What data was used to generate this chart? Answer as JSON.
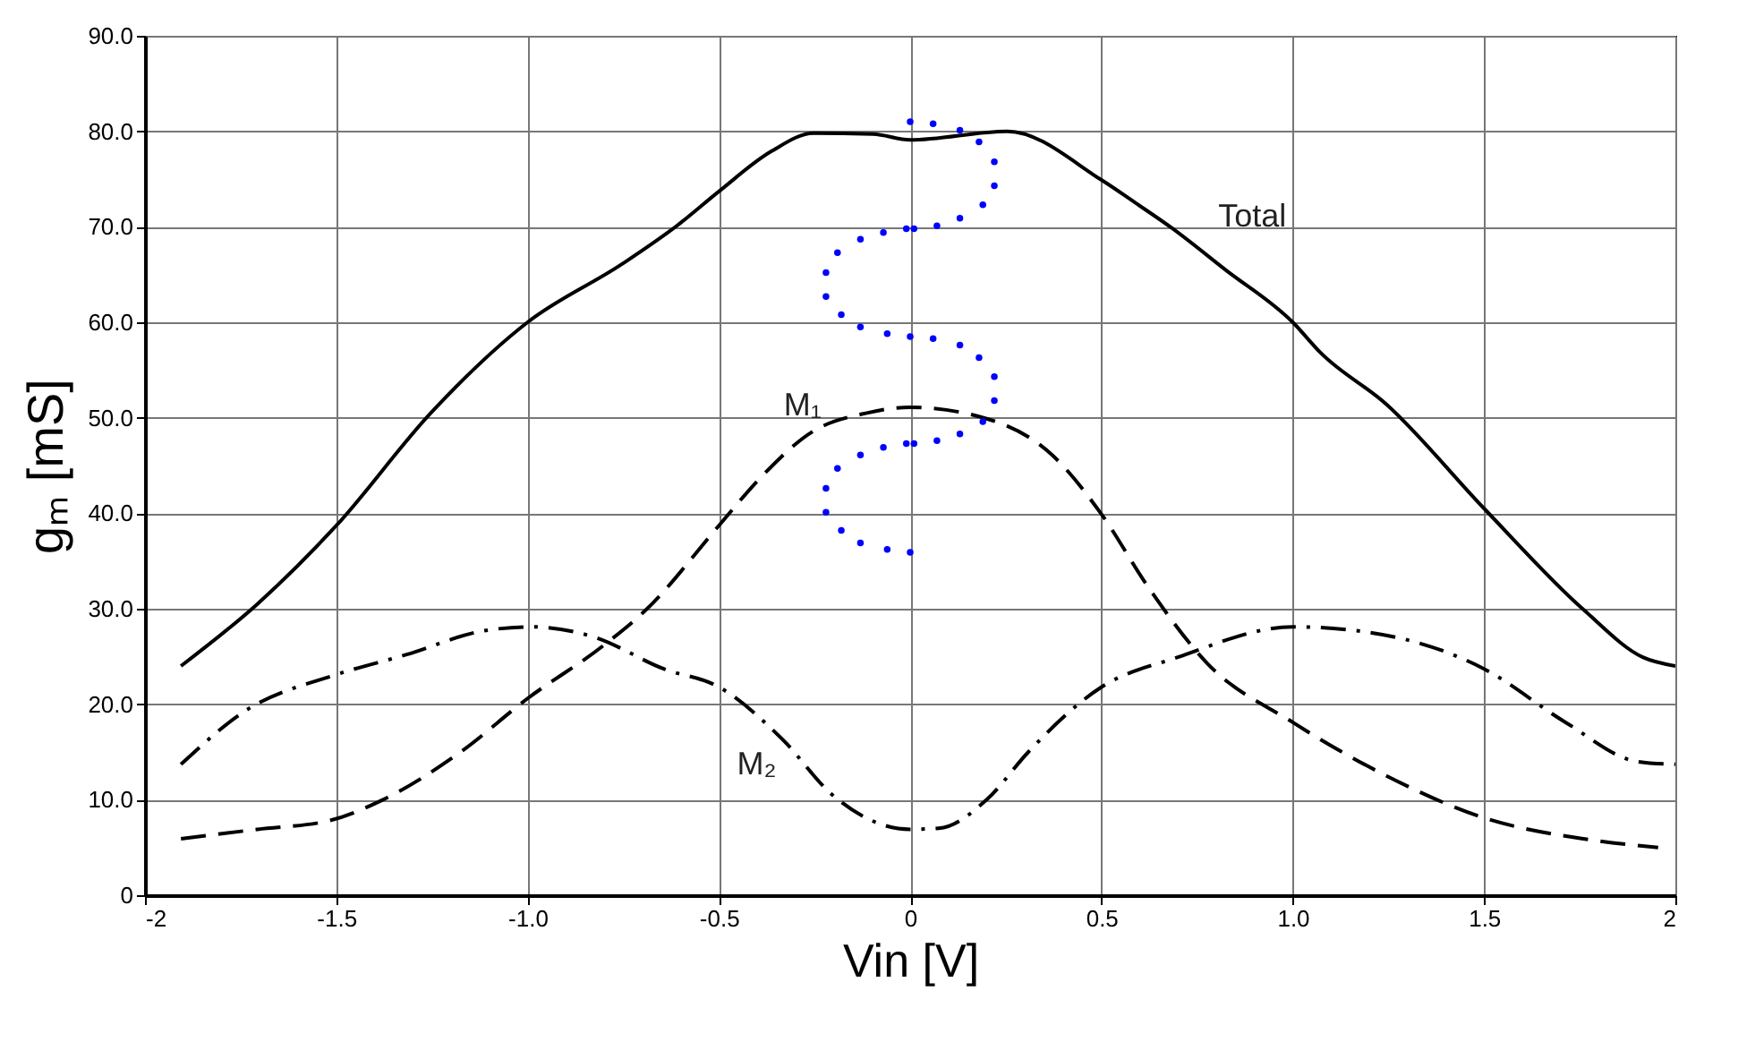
{
  "chart_data": {
    "type": "line",
    "xlabel": "Vin [V]",
    "ylabel": "gₘ [mS]",
    "xlim": [
      -2,
      2
    ],
    "ylim": [
      0,
      90
    ],
    "xticks": [
      {
        "value": -2,
        "label": "-2"
      },
      {
        "value": -1.5,
        "label": "-1.5"
      },
      {
        "value": -1,
        "label": "-1.0"
      },
      {
        "value": -0.5,
        "label": "-0.5"
      },
      {
        "value": 0,
        "label": "0"
      },
      {
        "value": 0.5,
        "label": "0.5"
      },
      {
        "value": 1,
        "label": "1.0"
      },
      {
        "value": 1.5,
        "label": "1.5"
      },
      {
        "value": 2,
        "label": "2"
      }
    ],
    "yticks": [
      0,
      {
        "value": 10,
        "label": "10.0"
      },
      {
        "value": 20,
        "label": "20.0"
      },
      {
        "value": 30,
        "label": "30.0"
      },
      {
        "value": 40,
        "label": "40.0"
      },
      {
        "value": 50,
        "label": "50.0"
      },
      {
        "value": 60,
        "label": "60.0"
      },
      {
        "value": 70,
        "label": "70.0"
      },
      {
        "value": 80,
        "label": "80.0"
      },
      {
        "value": 90,
        "label": "90.0"
      }
    ],
    "grid": true,
    "series": [
      {
        "name": "Total",
        "color": "#000000",
        "line_style": "solid",
        "x": [
          -1.906,
          -1.706,
          -1.5,
          -1.253,
          -1.0,
          -0.753,
          -0.61,
          -0.5,
          -0.363,
          -0.253,
          -0.097,
          0,
          0.254,
          0.5,
          0.589,
          0.683,
          0.824,
          1.0,
          1.073,
          1.245,
          1.5,
          1.76,
          1.916,
          2.0
        ],
        "values": [
          24.0,
          30.5,
          38.7,
          50.5,
          60.0,
          66.1,
          70.1,
          73.7,
          77.9,
          79.8,
          79.7,
          79.1,
          80.0,
          74.9,
          72.5,
          69.9,
          65.5,
          60.0,
          56.8,
          51.4,
          40.5,
          29.9,
          24.9,
          24.0
        ]
      },
      {
        "name": "M₁",
        "color": "#000000",
        "line_style": "dashed",
        "x": [
          -1.906,
          -1.706,
          -1.519,
          -1.378,
          -1.175,
          -1.0,
          -0.8,
          -0.69,
          -0.5,
          -0.394,
          -0.253,
          -0.113,
          0,
          0.2,
          0.371,
          0.5,
          0.62,
          0.776,
          1.0,
          1.245,
          1.5,
          1.76,
          1.955
        ],
        "values": [
          5.9,
          6.9,
          7.8,
          10.0,
          15.0,
          20.6,
          26.2,
          29.9,
          38.7,
          43.6,
          48.6,
          50.5,
          51.1,
          49.9,
          46.1,
          39.9,
          32.4,
          24.3,
          18.1,
          12.5,
          8.1,
          5.9,
          5.0
        ]
      },
      {
        "name": "M₂",
        "color": "#000000",
        "line_style": "dashdot",
        "x": [
          -1.906,
          -1.738,
          -1.5,
          -1.316,
          -1.113,
          -0.988,
          -0.831,
          -0.644,
          -0.5,
          -0.331,
          -0.206,
          0,
          0.075,
          0.2,
          0.309,
          0.5,
          0.698,
          1.0,
          1.167,
          1.5,
          1.713,
          1.9,
          2.0
        ],
        "values": [
          13.7,
          19.3,
          23.1,
          25.2,
          27.7,
          28.1,
          27.1,
          23.7,
          21.8,
          16.2,
          10.6,
          6.9,
          7.0,
          10.0,
          15.0,
          21.8,
          24.9,
          28.1,
          27.7,
          23.7,
          18.1,
          14.0,
          13.7
        ]
      },
      {
        "type": "scatter",
        "color": "#0000ff",
        "marker": "circle",
        "x": [
          0,
          0.06,
          0.13,
          0.18,
          0.22,
          0.22,
          0.19,
          0.13,
          0.07,
          0.01,
          -0.01,
          -0.07,
          -0.13,
          -0.19,
          -0.22,
          -0.22,
          -0.18,
          -0.13,
          -0.06,
          0,
          0.06,
          0.13,
          0.18,
          0.22,
          0.22,
          0.19,
          0.13,
          0.07,
          0.01,
          -0.01,
          -0.07,
          -0.13,
          -0.19,
          -0.22,
          -0.22,
          -0.18,
          -0.13,
          -0.06,
          0
        ],
        "values": [
          81.0,
          80.8,
          80.1,
          78.9,
          76.8,
          74.3,
          72.3,
          70.9,
          70.1,
          69.8,
          69.8,
          69.4,
          68.7,
          67.3,
          65.2,
          62.7,
          60.8,
          59.5,
          58.8,
          58.5,
          58.3,
          57.6,
          56.3,
          54.3,
          51.8,
          49.6,
          48.3,
          47.6,
          47.3,
          47.3,
          46.9,
          46.1,
          44.7,
          42.6,
          40.1,
          38.2,
          36.9,
          36.2,
          35.9
        ]
      }
    ]
  }
}
